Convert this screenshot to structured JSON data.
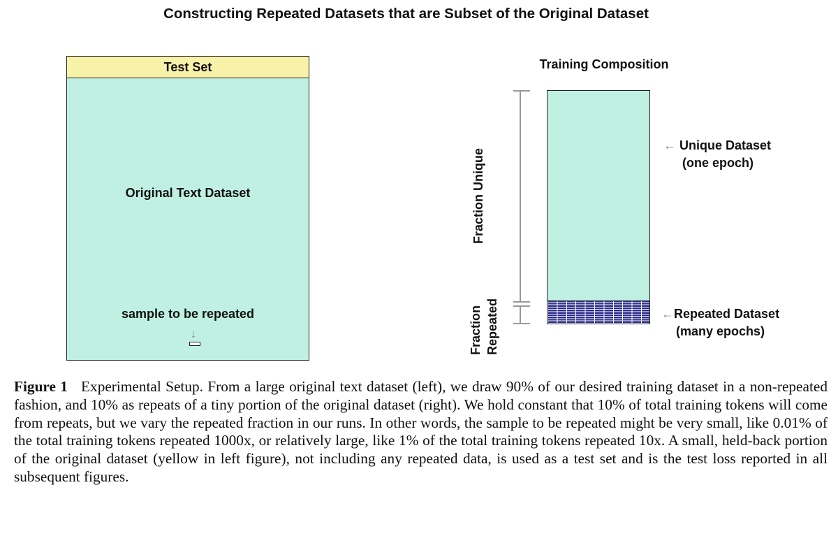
{
  "title": "Constructing Repeated Datasets that are Subset of the Original Dataset",
  "left": {
    "test_set": "Test Set",
    "original": "Original Text Dataset",
    "sample": "sample to be repeated"
  },
  "right": {
    "title": "Training Composition",
    "fraction_unique": "Fraction Unique",
    "fraction_repeated_1": "Fraction",
    "fraction_repeated_2": "Repeated",
    "unique_1": "Unique Dataset",
    "unique_2": "(one epoch)",
    "repeated_1": "Repeated Dataset",
    "repeated_2": "(many epochs)"
  },
  "icons": {
    "left_arrow": "←",
    "down_arrow": "↓"
  },
  "caption": {
    "label": "Figure 1",
    "text": "Experimental Setup. From a large original text dataset (left), we draw 90% of our desired training dataset in a non-repeated fashion, and 10% as repeats of a tiny portion of the original dataset (right). We hold constant that 10% of total training tokens will come from repeats, but we vary the repeated fraction in our runs. In other words, the sample to be repeated might be very small, like 0.01% of the total training tokens repeated 1000x, or relatively large, like 1% of the total training tokens repeated 10x. A small, held-back portion of the original dataset (yellow in left figure), not including any repeated data, is used as a test set and is the test loss reported in all subsequent figures."
  },
  "colors": {
    "original": "#bff0e1",
    "test_set": "#f8f1a8",
    "repeated": "#2c2c8c"
  }
}
